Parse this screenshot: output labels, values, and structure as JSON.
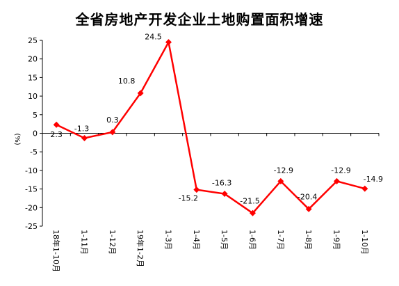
{
  "chart_data": {
    "type": "line",
    "title": "全省房地产开发企业土地购置面积增速",
    "xlabel": "",
    "ylabel": "(%)",
    "categories": [
      "18年1-10月",
      "1-11月",
      "1-12月",
      "19年1-2月",
      "1-3月",
      "1-4月",
      "1-5月",
      "1-6月",
      "1-7月",
      "1-8月",
      "1-9月",
      "1-10月"
    ],
    "series": [
      {
        "values": [
          2.3,
          -1.3,
          0.3,
          10.8,
          24.5,
          -15.2,
          -16.3,
          -21.5,
          -12.9,
          -20.4,
          -12.9,
          -14.9
        ],
        "labels": [
          "2.3",
          "-1.3",
          "0.3",
          "10.8",
          "24.5",
          "-15.2",
          "-16.3",
          "-21.5",
          "-12.9",
          "-20.4",
          "-12.9",
          "-14.9"
        ]
      }
    ],
    "ylim": [
      -25,
      25
    ],
    "yticks": [
      -25,
      -20,
      -15,
      -10,
      -5,
      0,
      5,
      10,
      15,
      20,
      25
    ],
    "line_color": "#ff0000",
    "grid": false,
    "legend": "none"
  }
}
